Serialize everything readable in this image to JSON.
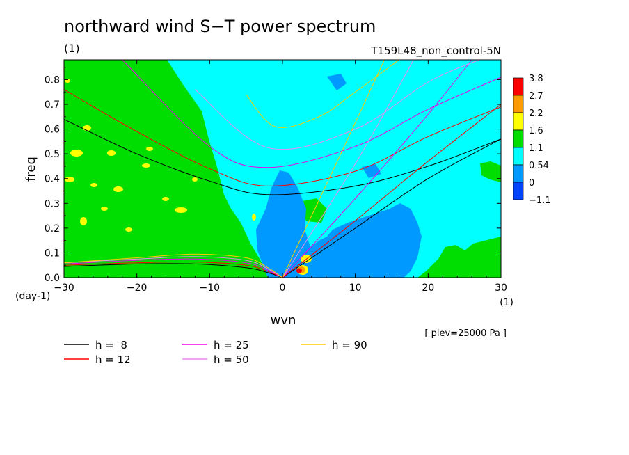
{
  "chart_data": {
    "type": "heatmap",
    "title": "northward wind S−T power spectrum",
    "title_unit": "(1)",
    "subtitle_right": "T159L48_non_control-5N",
    "xlabel": "wvn",
    "ylabel": "freq",
    "x_unit": "(1)",
    "y_unit": "(day-1)",
    "xlim": [
      -30,
      30
    ],
    "ylim": [
      0,
      0.88
    ],
    "x_ticks": [
      "−30",
      "−20",
      "−10",
      "0",
      "10",
      "20",
      "30"
    ],
    "x_tick_values": [
      -30,
      -20,
      -10,
      0,
      10,
      20,
      30
    ],
    "y_ticks": [
      "0.0",
      "0.1",
      "0.2",
      "0.3",
      "0.4",
      "0.5",
      "0.6",
      "0.7",
      "0.8"
    ],
    "y_tick_values": [
      0,
      0.1,
      0.2,
      0.3,
      0.4,
      0.5,
      0.6,
      0.7,
      0.8
    ],
    "annotation": "[ plev=25000 Pa ]",
    "colorbar": {
      "levels": [
        "3.8",
        "2.7",
        "2.2",
        "1.6",
        "1.1",
        "0.54",
        "0",
        "−1.1"
      ],
      "colors": [
        "#ff0000",
        "#ff9900",
        "#ffff00",
        "#00dd00",
        "#00ffff",
        "#0099ff",
        "#0044ff"
      ]
    },
    "legend": [
      {
        "label": "h =  8",
        "color": "#000000"
      },
      {
        "label": "h = 12",
        "color": "#ff0000"
      },
      {
        "label": "h = 25",
        "color": "#ee00ee"
      },
      {
        "label": "h = 50",
        "color": "#ee88ee"
      },
      {
        "label": "h = 90",
        "color": "#ffcc00"
      }
    ],
    "series": [
      {
        "name": "h =  8",
        "color": "#000000",
        "curves": {
          "westward_high": {
            "x": [
              -30,
              -20,
              -10,
              -2,
              10,
              20,
              30
            ],
            "y": [
              0.64,
              0.5,
              0.39,
              0.335,
              0.37,
              0.45,
              0.56
            ]
          },
          "westward_low": {
            "x": [
              -30,
              -20,
              -12,
              -5,
              -2,
              0
            ],
            "y": [
              0.045,
              0.055,
              0.055,
              0.04,
              0.02,
              0
            ]
          },
          "eastward": {
            "x": [
              0,
              10,
              20,
              30
            ],
            "y": [
              0,
              0.2,
              0.4,
              0.56
            ]
          }
        }
      },
      {
        "name": "h = 12",
        "color": "#ff0000",
        "curves": {
          "westward_high": {
            "x": [
              -30,
              -20,
              -10,
              -2,
              10,
              20,
              30
            ],
            "y": [
              0.76,
              0.59,
              0.44,
              0.37,
              0.43,
              0.57,
              0.69
            ]
          },
          "westward_low": {
            "x": [
              -30,
              -20,
              -12,
              -5,
              -2,
              0
            ],
            "y": [
              0.05,
              0.06,
              0.063,
              0.05,
              0.025,
              0
            ]
          },
          "eastward": {
            "x": [
              0,
              10,
              20,
              30
            ],
            "y": [
              0,
              0.23,
              0.47,
              0.7
            ]
          }
        }
      },
      {
        "name": "h = 25",
        "color": "#ee00ee",
        "curves": {
          "westward_high": {
            "x": [
              -22,
              -10,
              -2,
              10,
              20,
              30
            ],
            "y": [
              0.88,
              0.53,
              0.445,
              0.53,
              0.68,
              0.81
            ]
          },
          "westward_low": {
            "x": [
              -30,
              -20,
              -12,
              -5,
              -2,
              0
            ],
            "y": [
              0.055,
              0.07,
              0.075,
              0.06,
              0.03,
              0
            ]
          },
          "eastward": {
            "x": [
              0,
              10,
              20,
              26
            ],
            "y": [
              0,
              0.32,
              0.66,
              0.88
            ]
          }
        }
      },
      {
        "name": "h = 50",
        "color": "#ee88ee",
        "curves": {
          "westward_high": {
            "x": [
              -12,
              -2,
              10,
              20,
              27
            ],
            "y": [
              0.76,
              0.525,
              0.6,
              0.79,
              0.88
            ]
          },
          "westward_low": {
            "x": [
              -30,
              -20,
              -12,
              -5,
              -2,
              0
            ],
            "y": [
              0.06,
              0.075,
              0.085,
              0.07,
              0.035,
              0
            ]
          },
          "eastward": {
            "x": [
              0,
              10,
              18
            ],
            "y": [
              0,
              0.46,
              0.88
            ]
          }
        }
      },
      {
        "name": "h = 90",
        "color": "#ffcc00",
        "curves": {
          "westward_high": {
            "x": [
              -5,
              -1,
              5,
              10,
              16
            ],
            "y": [
              0.74,
              0.61,
              0.65,
              0.75,
              0.88
            ]
          },
          "westward_low": {
            "x": [
              -30,
              -20,
              -12,
              -5,
              -2,
              0
            ],
            "y": [
              0.06,
              0.08,
              0.095,
              0.08,
              0.04,
              0
            ]
          },
          "eastward": {
            "x": [
              0,
              8,
              14
            ],
            "y": [
              0,
              0.5,
              0.88
            ]
          }
        }
      }
    ]
  }
}
